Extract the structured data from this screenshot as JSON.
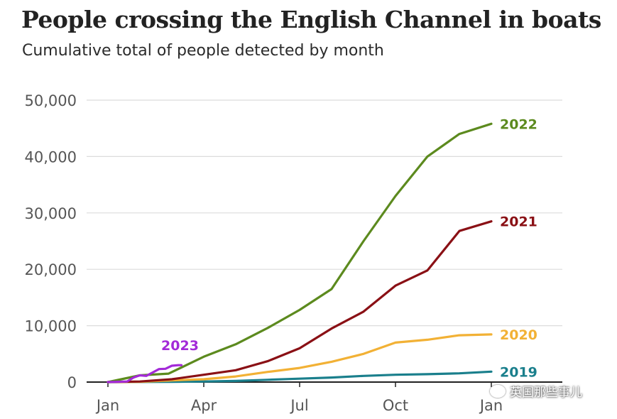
{
  "header": {
    "title": "People crossing the English Channel in boats",
    "subtitle": "Cumulative total of people detected by month"
  },
  "watermark": {
    "text": "英国那些事儿",
    "icon": "wechat-icon"
  },
  "chart_data": {
    "type": "line",
    "title": "People crossing the English Channel in boats",
    "subtitle": "Cumulative total of people detected by month",
    "xlabel": "",
    "ylabel": "",
    "x_ticks": [
      {
        "label": "Jan",
        "month": 0
      },
      {
        "label": "Apr",
        "month": 3
      },
      {
        "label": "Jul",
        "month": 6
      },
      {
        "label": "Oct",
        "month": 9
      },
      {
        "label": "Jan",
        "month": 12
      }
    ],
    "y_ticks": [
      {
        "label": "0",
        "value": 0
      },
      {
        "label": "10,000",
        "value": 10000
      },
      {
        "label": "20,000",
        "value": 20000
      },
      {
        "label": "30,000",
        "value": 30000
      },
      {
        "label": "40,000",
        "value": 40000
      },
      {
        "label": "50,000",
        "value": 50000
      }
    ],
    "xlim": [
      0,
      12
    ],
    "ylim": [
      0,
      50000
    ],
    "grid": true,
    "series": [
      {
        "name": "2019",
        "color": "#1a7f8c",
        "points": [
          [
            0,
            0
          ],
          [
            1,
            20
          ],
          [
            2,
            50
          ],
          [
            3,
            100
          ],
          [
            4,
            200
          ],
          [
            5,
            400
          ],
          [
            6,
            600
          ],
          [
            7,
            800
          ],
          [
            8,
            1100
          ],
          [
            9,
            1300
          ],
          [
            10,
            1400
          ],
          [
            11,
            1550
          ],
          [
            12,
            1850
          ]
        ]
      },
      {
        "name": "2020",
        "color": "#f2b135",
        "points": [
          [
            0,
            0
          ],
          [
            1,
            50
          ],
          [
            2,
            300
          ],
          [
            3,
            500
          ],
          [
            4,
            1000
          ],
          [
            5,
            1800
          ],
          [
            6,
            2500
          ],
          [
            7,
            3600
          ],
          [
            8,
            5000
          ],
          [
            9,
            7000
          ],
          [
            10,
            7500
          ],
          [
            11,
            8300
          ],
          [
            12,
            8450
          ]
        ]
      },
      {
        "name": "2021",
        "color": "#8a1015",
        "points": [
          [
            0,
            0
          ],
          [
            1,
            100
          ],
          [
            2,
            500
          ],
          [
            3,
            1300
          ],
          [
            4,
            2100
          ],
          [
            5,
            3700
          ],
          [
            6,
            6000
          ],
          [
            7,
            9500
          ],
          [
            8,
            12500
          ],
          [
            9,
            17100
          ],
          [
            10,
            19800
          ],
          [
            11,
            26800
          ],
          [
            12,
            28500
          ]
        ]
      },
      {
        "name": "2022",
        "color": "#5c8a1e",
        "points": [
          [
            0,
            0
          ],
          [
            1,
            1200
          ],
          [
            1.9,
            1500
          ],
          [
            3,
            4500
          ],
          [
            4,
            6700
          ],
          [
            5,
            9600
          ],
          [
            6,
            12800
          ],
          [
            7,
            16500
          ],
          [
            8,
            25000
          ],
          [
            9,
            33000
          ],
          [
            10,
            40000
          ],
          [
            11,
            44000
          ],
          [
            12,
            45800
          ]
        ]
      },
      {
        "name": "2023",
        "color": "#a32ad8",
        "points": [
          [
            0,
            0
          ],
          [
            0.6,
            100
          ],
          [
            0.8,
            800
          ],
          [
            1.0,
            1200
          ],
          [
            1.2,
            1100
          ],
          [
            1.4,
            1700
          ],
          [
            1.6,
            2300
          ],
          [
            1.8,
            2350
          ],
          [
            2.0,
            2900
          ],
          [
            2.2,
            3000
          ],
          [
            2.3,
            3000
          ]
        ]
      }
    ]
  }
}
